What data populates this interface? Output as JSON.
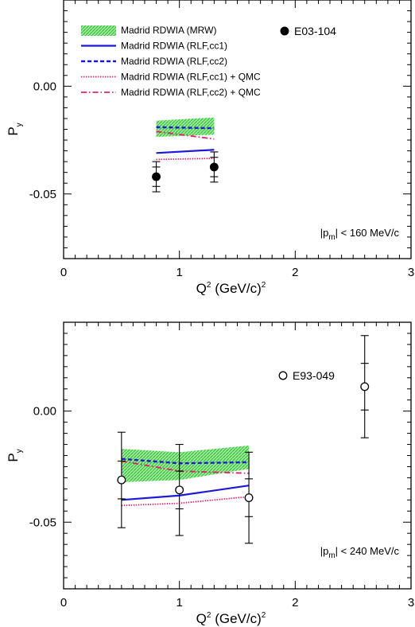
{
  "chart_data": [
    {
      "type": "line",
      "panel": "top",
      "xlabel": {
        "main": "Q",
        "sup1": "2",
        "mid": " (GeV/c)",
        "sup2": "2"
      },
      "ylabel": {
        "main": "P",
        "sub": "y"
      },
      "xlim": [
        0,
        3
      ],
      "ylim": [
        -0.08,
        0.04
      ],
      "x_ticks": [
        {
          "value": 0,
          "label": "0"
        },
        {
          "value": 1,
          "label": "1"
        },
        {
          "value": 2,
          "label": "2"
        },
        {
          "value": 3,
          "label": "3"
        }
      ],
      "y_ticks": [
        {
          "value": 0.0,
          "label": "0.00"
        },
        {
          "value": -0.05,
          "label": "-0.05"
        }
      ],
      "annotation": {
        "pre": "|p",
        "sub": "m",
        "post": "| < 160 MeV/c"
      },
      "legend": {
        "placement": "top-left",
        "entries": [
          {
            "key": "mrw",
            "label": "Madrid RDWIA (MRW)",
            "style": "band",
            "color": "#3cd23c"
          },
          {
            "key": "cc1",
            "label": "Madrid RDWIA (RLF,cc1)",
            "style": "solid",
            "color": "#1a1ad8"
          },
          {
            "key": "cc2",
            "label": "Madrid RDWIA (RLF,cc2)",
            "style": "dashed",
            "color": "#1a1ad8"
          },
          {
            "key": "cc1qmc",
            "label": "Madrid RDWIA (RLF,cc1) + QMC",
            "style": "dotted",
            "color": "#e0206a"
          },
          {
            "key": "cc2qmc",
            "label": "Madrid RDWIA (RLF,cc2) + QMC",
            "style": "dashdot",
            "color": "#e0206a"
          }
        ]
      },
      "series": [
        {
          "key": "mrw",
          "type": "band",
          "x": [
            0.8,
            1.3
          ],
          "lower": [
            -0.0235,
            -0.0225
          ],
          "upper": [
            -0.016,
            -0.0145
          ]
        },
        {
          "key": "cc1",
          "x": [
            0.8,
            1.3
          ],
          "y": [
            -0.031,
            -0.0295
          ]
        },
        {
          "key": "cc2",
          "x": [
            0.8,
            1.3
          ],
          "y": [
            -0.019,
            -0.0195
          ]
        },
        {
          "key": "cc1qmc",
          "x": [
            0.8,
            1.3
          ],
          "y": [
            -0.034,
            -0.0335
          ]
        },
        {
          "key": "cc2qmc",
          "x": [
            0.8,
            1.3
          ],
          "y": [
            -0.021,
            -0.0245
          ]
        }
      ],
      "data_series": {
        "label": "E03-104",
        "marker": "filled-circle",
        "points": [
          {
            "x": 0.8,
            "y": -0.042,
            "err_stat": 0.0045,
            "err_tot": 0.007
          },
          {
            "x": 1.3,
            "y": -0.0375,
            "err_stat": 0.0045,
            "err_tot": 0.007
          }
        ]
      }
    },
    {
      "type": "line",
      "panel": "bottom",
      "xlabel": {
        "main": "Q",
        "sup1": "2",
        "mid": " (GeV/c)",
        "sup2": "2"
      },
      "ylabel": {
        "main": "P",
        "sub": "y"
      },
      "xlim": [
        0,
        3
      ],
      "ylim": [
        -0.08,
        0.04
      ],
      "x_ticks": [
        {
          "value": 0,
          "label": "0"
        },
        {
          "value": 1,
          "label": "1"
        },
        {
          "value": 2,
          "label": "2"
        },
        {
          "value": 3,
          "label": "3"
        }
      ],
      "y_ticks": [
        {
          "value": 0.0,
          "label": "0.00"
        },
        {
          "value": -0.05,
          "label": "-0.05"
        }
      ],
      "annotation": {
        "pre": "|p",
        "sub": "m",
        "post": "| < 240 MeV/c"
      },
      "series": [
        {
          "key": "mrw",
          "type": "band",
          "x": [
            0.5,
            1.0,
            1.6
          ],
          "lower": [
            -0.032,
            -0.031,
            -0.026
          ],
          "upper": [
            -0.017,
            -0.0185,
            -0.0155
          ]
        },
        {
          "key": "cc1",
          "x": [
            0.5,
            1.0,
            1.6
          ],
          "y": [
            -0.04,
            -0.038,
            -0.0335
          ]
        },
        {
          "key": "cc2",
          "x": [
            0.5,
            1.0,
            1.6
          ],
          "y": [
            -0.0215,
            -0.0235,
            -0.023
          ]
        },
        {
          "key": "cc1qmc",
          "x": [
            0.5,
            1.0,
            1.6
          ],
          "y": [
            -0.0425,
            -0.0415,
            -0.0385
          ]
        },
        {
          "key": "cc2qmc",
          "x": [
            0.5,
            1.0,
            1.6
          ],
          "y": [
            -0.0225,
            -0.027,
            -0.028
          ]
        }
      ],
      "data_series": {
        "label": "E93-049",
        "marker": "open-circle",
        "points": [
          {
            "x": 0.5,
            "y": -0.031,
            "err_stat": 0.0085,
            "err_tot": 0.0215
          },
          {
            "x": 1.0,
            "y": -0.0355,
            "err_stat": 0.0085,
            "err_tot": 0.0205
          },
          {
            "x": 1.6,
            "y": -0.039,
            "err_stat": 0.0085,
            "err_tot": 0.0205
          },
          {
            "x": 2.6,
            "y": 0.011,
            "err_stat": 0.0105,
            "err_tot": 0.023
          }
        ]
      }
    }
  ]
}
